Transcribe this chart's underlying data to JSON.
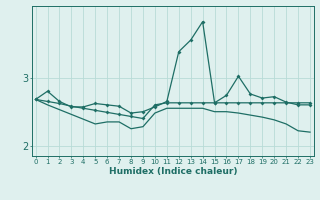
{
  "xlabel": "Humidex (Indice chaleur)",
  "bg_color": "#dff0ee",
  "line_color": "#1e6e65",
  "grid_color": "#b8dbd7",
  "x_values": [
    0,
    1,
    2,
    3,
    4,
    5,
    6,
    7,
    8,
    9,
    10,
    11,
    12,
    13,
    14,
    15,
    16,
    17,
    18,
    19,
    20,
    21,
    22,
    23
  ],
  "series1": [
    2.68,
    2.8,
    2.65,
    2.57,
    2.57,
    2.62,
    2.6,
    2.58,
    2.48,
    2.5,
    2.57,
    2.65,
    3.38,
    3.55,
    3.82,
    2.63,
    2.74,
    3.02,
    2.76,
    2.7,
    2.72,
    2.64,
    2.6,
    2.6
  ],
  "series2": [
    2.68,
    2.65,
    2.62,
    2.58,
    2.55,
    2.52,
    2.49,
    2.46,
    2.43,
    2.4,
    2.6,
    2.63,
    2.63,
    2.63,
    2.63,
    2.63,
    2.63,
    2.63,
    2.63,
    2.63,
    2.63,
    2.63,
    2.63,
    2.63
  ],
  "series3": [
    2.68,
    2.6,
    2.53,
    2.46,
    2.39,
    2.32,
    2.35,
    2.35,
    2.25,
    2.28,
    2.48,
    2.55,
    2.55,
    2.55,
    2.55,
    2.5,
    2.5,
    2.48,
    2.45,
    2.42,
    2.38,
    2.32,
    2.22,
    2.2
  ],
  "yticks": [
    2,
    3
  ],
  "ylim": [
    1.85,
    4.05
  ],
  "xlim": [
    -0.3,
    23.3
  ]
}
